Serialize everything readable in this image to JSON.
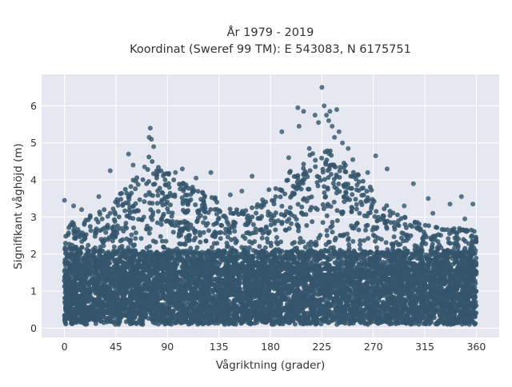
{
  "chart_data": {
    "type": "scatter",
    "title": "År 1979 - 2019",
    "subtitle": "Koordinat (Sweref 99 TM): E 543083, N 6175751",
    "xlabel": "Vågriktning (grader)",
    "ylabel": "Signifikant våghöjd (m)",
    "xlim": [
      -20,
      380
    ],
    "ylim": [
      -0.25,
      6.85
    ],
    "xticks": [
      0,
      45,
      90,
      135,
      180,
      225,
      270,
      315,
      360
    ],
    "xtick_labels": [
      "0",
      "45",
      "90",
      "135",
      "180",
      "225",
      "270",
      "315",
      "360"
    ],
    "yticks": [
      0,
      1,
      2,
      3,
      4,
      5,
      6
    ],
    "ytick_labels": [
      "0",
      "1",
      "2",
      "3",
      "4",
      "5",
      "6"
    ],
    "grid": true,
    "background": "#e5e8f0",
    "point_color": "#34556b",
    "envelope": {
      "x": [
        0,
        20,
        40,
        55,
        65,
        75,
        85,
        100,
        120,
        140,
        150,
        165,
        175,
        185,
        195,
        205,
        215,
        225,
        235,
        245,
        255,
        265,
        275,
        290,
        305,
        320,
        335,
        350,
        360
      ],
      "y": [
        2.7,
        2.9,
        3.2,
        3.8,
        4.3,
        4.6,
        4.2,
        3.9,
        3.6,
        3.3,
        3.1,
        3.2,
        3.5,
        3.9,
        4.1,
        4.3,
        4.6,
        4.8,
        4.7,
        4.5,
        4.1,
        3.8,
        3.4,
        3.0,
        2.8,
        2.7,
        2.6,
        2.6,
        2.6
      ]
    },
    "outliers": [
      {
        "x": 0,
        "y": 3.45
      },
      {
        "x": 8,
        "y": 3.3
      },
      {
        "x": 40,
        "y": 4.25
      },
      {
        "x": 56,
        "y": 4.7
      },
      {
        "x": 60,
        "y": 4.4
      },
      {
        "x": 70,
        "y": 4.35
      },
      {
        "x": 74,
        "y": 5.15
      },
      {
        "x": 75,
        "y": 5.4
      },
      {
        "x": 76,
        "y": 5.1
      },
      {
        "x": 78,
        "y": 4.9
      },
      {
        "x": 97,
        "y": 4.2
      },
      {
        "x": 103,
        "y": 4.3
      },
      {
        "x": 128,
        "y": 4.2
      },
      {
        "x": 164,
        "y": 4.1
      },
      {
        "x": 190,
        "y": 5.3
      },
      {
        "x": 196,
        "y": 4.6
      },
      {
        "x": 204,
        "y": 5.95
      },
      {
        "x": 205,
        "y": 5.45
      },
      {
        "x": 209,
        "y": 5.85
      },
      {
        "x": 214,
        "y": 4.85
      },
      {
        "x": 219,
        "y": 5.75
      },
      {
        "x": 222,
        "y": 5.55
      },
      {
        "x": 225,
        "y": 6.5
      },
      {
        "x": 227,
        "y": 6.0
      },
      {
        "x": 229,
        "y": 5.75
      },
      {
        "x": 231,
        "y": 5.6
      },
      {
        "x": 232,
        "y": 5.85
      },
      {
        "x": 234,
        "y": 5.45
      },
      {
        "x": 236,
        "y": 5.15
      },
      {
        "x": 238,
        "y": 5.9
      },
      {
        "x": 240,
        "y": 5.3
      },
      {
        "x": 243,
        "y": 5.0
      },
      {
        "x": 248,
        "y": 4.85
      },
      {
        "x": 252,
        "y": 4.55
      },
      {
        "x": 265,
        "y": 4.2
      },
      {
        "x": 272,
        "y": 4.65
      },
      {
        "x": 282,
        "y": 4.3
      },
      {
        "x": 305,
        "y": 3.9
      },
      {
        "x": 318,
        "y": 3.5
      },
      {
        "x": 337,
        "y": 3.35
      },
      {
        "x": 347,
        "y": 3.55
      },
      {
        "x": 357,
        "y": 3.35
      },
      {
        "x": 350,
        "y": 2.95
      },
      {
        "x": 322,
        "y": 3.1
      },
      {
        "x": 297,
        "y": 3.3
      },
      {
        "x": 155,
        "y": 3.7
      },
      {
        "x": 145,
        "y": 3.6
      },
      {
        "x": 30,
        "y": 3.55
      },
      {
        "x": 15,
        "y": 3.2
      },
      {
        "x": 115,
        "y": 4.05
      }
    ]
  }
}
